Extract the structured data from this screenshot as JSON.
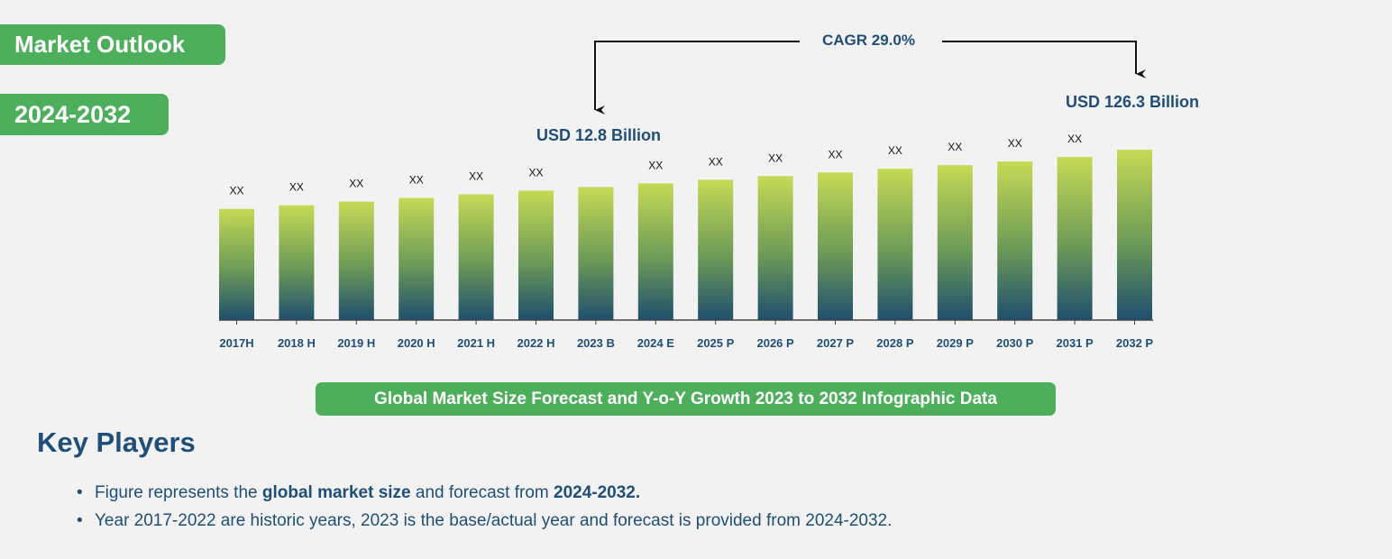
{
  "header": {
    "title": "Market Outlook",
    "period": "2024-2032"
  },
  "callouts": {
    "start_value": "USD 12.8 Billion",
    "end_value": "USD 126.3 Billion",
    "cagr": "CAGR 29.0%"
  },
  "chart_data": {
    "type": "bar",
    "categories": [
      "2017H",
      "2018 H",
      "2019 H",
      "2020 H",
      "2021 H",
      "2022 H",
      "2023 B",
      "2024 E",
      "2025 P",
      "2026 P",
      "2027 P",
      "2028 P",
      "2029 P",
      "2030 P",
      "2031 P",
      "2032 P"
    ],
    "values": [
      122,
      126,
      130,
      134,
      138,
      142,
      146,
      150,
      154,
      158,
      162,
      166,
      170,
      174,
      179,
      187
    ],
    "data_labels": [
      "XX",
      "XX",
      "XX",
      "XX",
      "XX",
      "XX",
      "",
      "XX",
      "XX",
      "XX",
      "XX",
      "XX",
      "XX",
      "XX",
      "XX",
      ""
    ],
    "value_note": "bar heights are relative indices (values not printed; labels shown as XX)",
    "ylim": [
      0,
      187
    ],
    "title": "",
    "xlabel": "",
    "ylabel": "",
    "gradient": {
      "top": "#c5da55",
      "bottom": "#1f4e6e"
    }
  },
  "caption": "Global Market Size Forecast and Y-o-Y Growth 2023 to 2032 Infographic Data",
  "key_players": {
    "title": "Key Players",
    "notes": [
      {
        "pre": "Figure represents the ",
        "b1": "global market size",
        "mid": " and forecast from ",
        "b2": "2024-2032."
      },
      {
        "text": "Year 2017-2022 are historic years, 2023 is the base/actual year and forecast is provided from 2024-2032."
      }
    ]
  },
  "colors": {
    "accent_green": "#4daf5c",
    "navy": "#1f4e79",
    "background": "#f2f2f2"
  }
}
